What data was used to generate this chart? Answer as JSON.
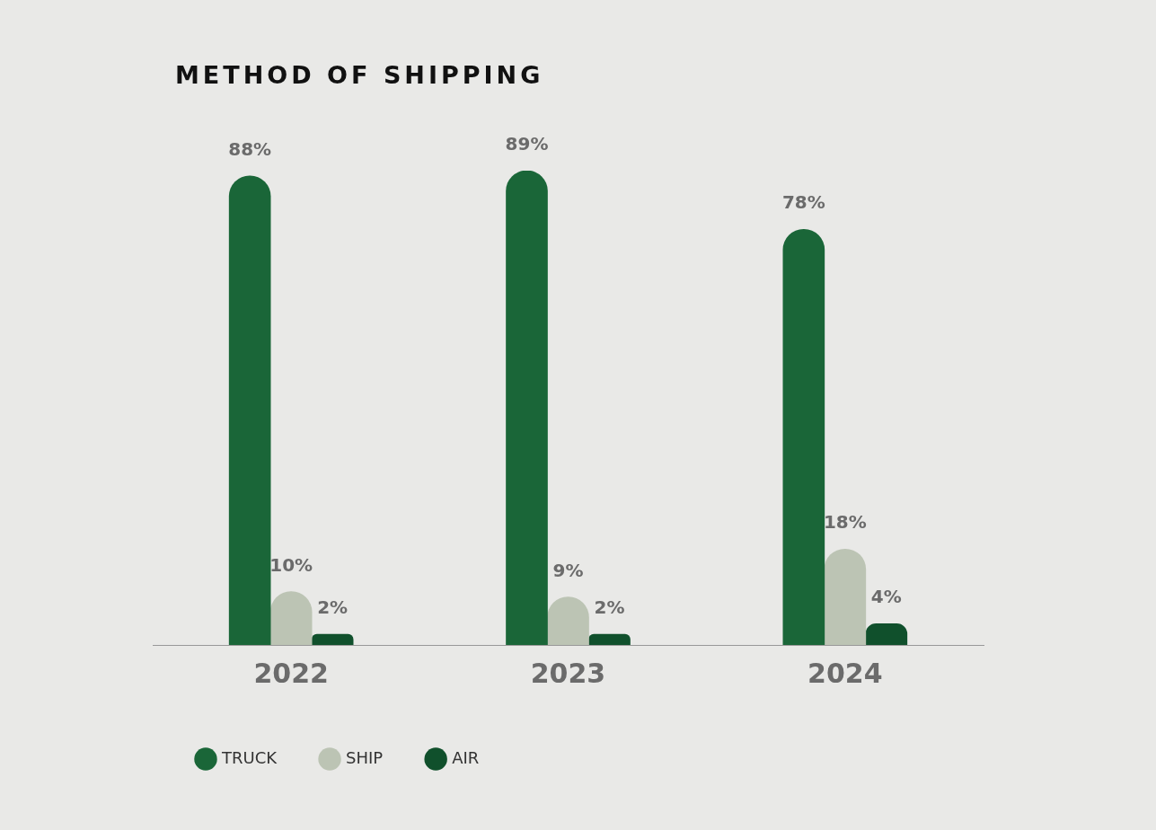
{
  "chart_data": {
    "type": "bar",
    "title": "METHOD OF SHIPPING",
    "categories": [
      "2022",
      "2023",
      "2024"
    ],
    "series": [
      {
        "name": "TRUCK",
        "color": "#1a6638",
        "values": [
          88,
          89,
          78
        ],
        "value_labels": [
          "88%",
          "89%",
          "78%"
        ]
      },
      {
        "name": "SHIP",
        "color": "#bcc4b4",
        "values": [
          10,
          9,
          18
        ],
        "value_labels": [
          "10%",
          "9%",
          "18%"
        ]
      },
      {
        "name": "AIR",
        "color": "#10502c",
        "values": [
          2,
          2,
          4
        ],
        "value_labels": [
          "2%",
          "2%",
          "4%"
        ]
      }
    ],
    "legend": "bottom left",
    "grid": false
  }
}
